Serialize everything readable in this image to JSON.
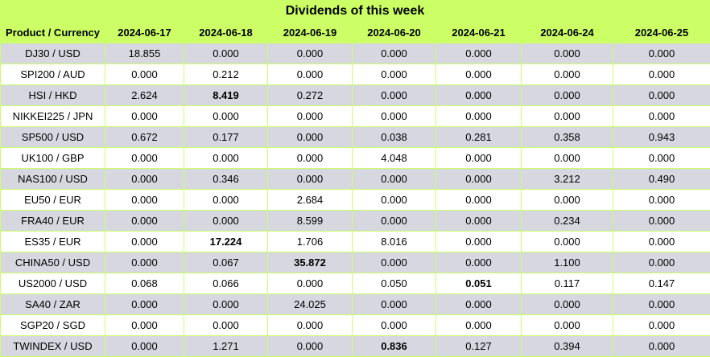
{
  "title": "Dividends of this week",
  "header": {
    "product_label": "Product / Currency",
    "dates": [
      "2024-06-17",
      "2024-06-18",
      "2024-06-19",
      "2024-06-20",
      "2024-06-21",
      "2024-06-24",
      "2024-06-25"
    ]
  },
  "rows": [
    {
      "product": "DJ30 / USD",
      "values": [
        "18.855",
        "0.000",
        "0.000",
        "0.000",
        "0.000",
        "0.000",
        "0.000"
      ],
      "bold": []
    },
    {
      "product": "SPI200 / AUD",
      "values": [
        "0.000",
        "0.212",
        "0.000",
        "0.000",
        "0.000",
        "0.000",
        "0.000"
      ],
      "bold": []
    },
    {
      "product": "HSI / HKD",
      "values": [
        "2.624",
        "8.419",
        "0.272",
        "0.000",
        "0.000",
        "0.000",
        "0.000"
      ],
      "bold": [
        1
      ]
    },
    {
      "product": "NIKKEI225 / JPN",
      "values": [
        "0.000",
        "0.000",
        "0.000",
        "0.000",
        "0.000",
        "0.000",
        "0.000"
      ],
      "bold": []
    },
    {
      "product": "SP500 / USD",
      "values": [
        "0.672",
        "0.177",
        "0.000",
        "0.038",
        "0.281",
        "0.358",
        "0.943"
      ],
      "bold": []
    },
    {
      "product": "UK100 / GBP",
      "values": [
        "0.000",
        "0.000",
        "0.000",
        "4.048",
        "0.000",
        "0.000",
        "0.000"
      ],
      "bold": []
    },
    {
      "product": "NAS100 / USD",
      "values": [
        "0.000",
        "0.346",
        "0.000",
        "0.000",
        "0.000",
        "3.212",
        "0.490"
      ],
      "bold": []
    },
    {
      "product": "EU50 / EUR",
      "values": [
        "0.000",
        "0.000",
        "2.684",
        "0.000",
        "0.000",
        "0.000",
        "0.000"
      ],
      "bold": []
    },
    {
      "product": "FRA40 / EUR",
      "values": [
        "0.000",
        "0.000",
        "8.599",
        "0.000",
        "0.000",
        "0.234",
        "0.000"
      ],
      "bold": []
    },
    {
      "product": "ES35 / EUR",
      "values": [
        "0.000",
        "17.224",
        "1.706",
        "8.016",
        "0.000",
        "0.000",
        "0.000"
      ],
      "bold": [
        1
      ]
    },
    {
      "product": "CHINA50 / USD",
      "values": [
        "0.000",
        "0.067",
        "35.872",
        "0.000",
        "0.000",
        "1.100",
        "0.000"
      ],
      "bold": [
        2
      ]
    },
    {
      "product": "US2000 / USD",
      "values": [
        "0.068",
        "0.066",
        "0.000",
        "0.050",
        "0.051",
        "0.117",
        "0.147"
      ],
      "bold": [
        4
      ]
    },
    {
      "product": "SA40 / ZAR",
      "values": [
        "0.000",
        "0.000",
        "24.025",
        "0.000",
        "0.000",
        "0.000",
        "0.000"
      ],
      "bold": []
    },
    {
      "product": "SGP20 / SGD",
      "values": [
        "0.000",
        "0.000",
        "0.000",
        "0.000",
        "0.000",
        "0.000",
        "0.000"
      ],
      "bold": []
    },
    {
      "product": "TWINDEX / USD",
      "values": [
        "0.000",
        "1.271",
        "0.000",
        "0.836",
        "0.127",
        "0.394",
        "0.000"
      ],
      "bold": [
        3
      ]
    }
  ]
}
